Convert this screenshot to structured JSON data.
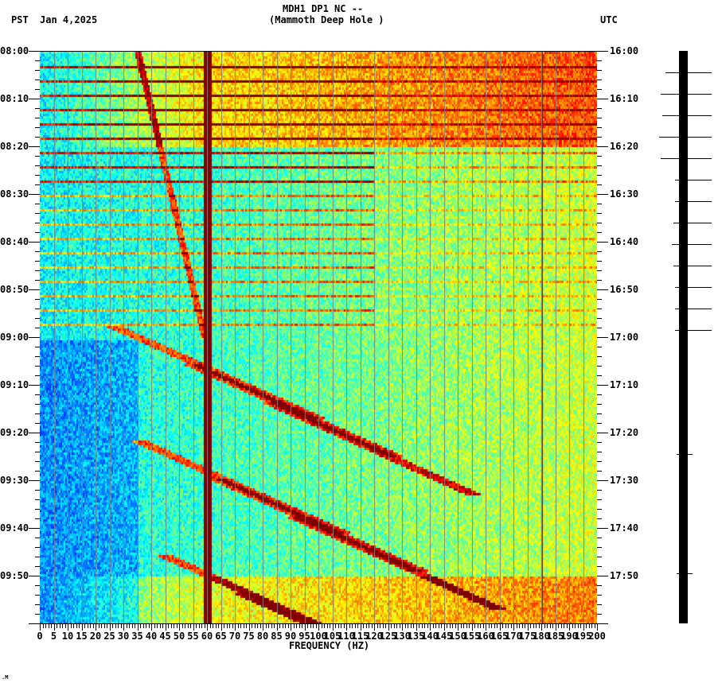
{
  "header": {
    "station_line": "MDH1 DP1 NC --",
    "site_line": "(Mammoth Deep Hole )",
    "left_tz": "PST",
    "date": "Jan 4,2025",
    "right_tz": "UTC"
  },
  "footer_mark": ".M",
  "chart_data": {
    "type": "heatmap",
    "title": "MDH1 DP1 NC -- (Mammoth Deep Hole )",
    "subtitle": "Jan 4,2025",
    "xlabel": "FREQUENCY (HZ)",
    "ylabel_left": "PST",
    "ylabel_right": "UTC",
    "xlim": [
      0,
      200
    ],
    "x_ticks": [
      0,
      5,
      10,
      15,
      20,
      25,
      30,
      35,
      40,
      45,
      50,
      55,
      60,
      65,
      70,
      75,
      80,
      85,
      90,
      95,
      100,
      105,
      110,
      115,
      120,
      125,
      130,
      135,
      140,
      145,
      150,
      155,
      160,
      165,
      170,
      175,
      180,
      185,
      190,
      195,
      200
    ],
    "x_tick_labels": [
      "0",
      "5",
      "10",
      "15",
      "20",
      "25",
      "30",
      "35",
      "40",
      "45",
      "50",
      "55",
      "60",
      "65",
      "70",
      "75",
      "80",
      "85",
      "90",
      "95",
      "100",
      "105",
      "110",
      "115",
      "120",
      "125",
      "130",
      "135",
      "140",
      "145",
      "150",
      "155",
      "160",
      "165",
      "170",
      "175",
      "180",
      "185",
      "190",
      "195",
      "200"
    ],
    "y_ticks_left": [
      "08:00",
      "08:10",
      "08:20",
      "08:30",
      "08:40",
      "08:50",
      "09:00",
      "09:10",
      "09:20",
      "09:30",
      "09:40",
      "09:50"
    ],
    "y_ticks_right": [
      "16:00",
      "16:10",
      "16:20",
      "16:30",
      "16:40",
      "16:50",
      "17:00",
      "17:10",
      "17:20",
      "17:30",
      "17:40",
      "17:50"
    ],
    "time_range_minutes": 120,
    "grid": "vertical gray lines every 5 Hz",
    "colormap": [
      "#0000ff",
      "#0080ff",
      "#00ffff",
      "#80ff80",
      "#ffff00",
      "#ff8000",
      "#ff0000",
      "#800000"
    ],
    "features": {
      "constant_line_hz": [
        60,
        180
      ],
      "broadband_stripes_0820_to_0858": "periodic horizontal high-power bands every ~3 min",
      "high_noise_band_minutes": [
        [
          0,
          20
        ],
        [
          110,
          120
        ]
      ],
      "gliding_harmonics": "upward-sweeping curved tones from ~20 Hz to ~140 Hz between 09:00 and 10:00"
    }
  },
  "seismogram": {
    "spike_minutes": [
      4.5,
      9,
      13.5,
      18,
      22.5,
      27,
      31.5,
      36,
      40.5,
      45,
      49.5,
      54,
      58.5,
      84.5,
      109.5
    ],
    "spike_widths": [
      [
        22,
        30
      ],
      [
        28,
        30
      ],
      [
        26,
        30
      ],
      [
        30,
        30
      ],
      [
        28,
        30
      ],
      [
        10,
        30
      ],
      [
        10,
        30
      ],
      [
        12,
        30
      ],
      [
        14,
        30
      ],
      [
        12,
        30
      ],
      [
        10,
        30
      ],
      [
        10,
        30
      ],
      [
        10,
        30
      ],
      [
        8,
        6
      ],
      [
        8,
        6
      ]
    ]
  },
  "colors": {
    "background": "#ffffff",
    "axis": "#000000",
    "gridline": "#808080",
    "hot": "#8b0000"
  }
}
